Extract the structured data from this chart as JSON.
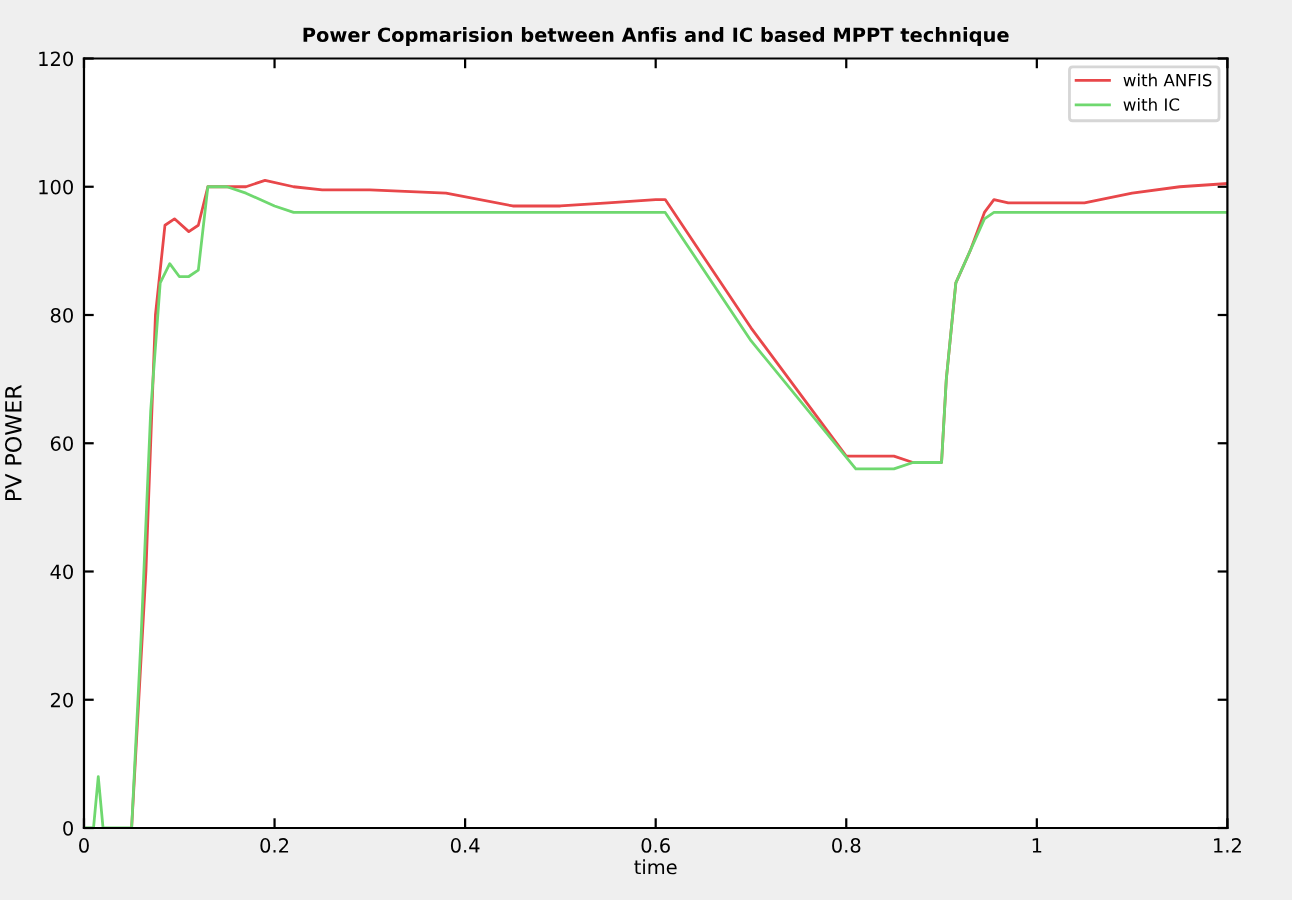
{
  "chart_data": {
    "type": "line",
    "title": "Power Copmarision between Anfis and IC based MPPT technique",
    "xlabel": "time",
    "ylabel": "PV POWER",
    "xlim": [
      0,
      1.2
    ],
    "ylim": [
      0,
      120
    ],
    "xticks": [
      0,
      0.2,
      0.4,
      0.6,
      0.8,
      1,
      1.2
    ],
    "yticks": [
      0,
      20,
      40,
      60,
      80,
      100,
      120
    ],
    "grid": false,
    "legend": "top right",
    "line_style": "solid",
    "marker": "none",
    "series": [
      {
        "name": "with ANFIS",
        "color": "#e8474a",
        "x": [
          0.05,
          0.065,
          0.075,
          0.085,
          0.095,
          0.11,
          0.12,
          0.13,
          0.15,
          0.17,
          0.19,
          0.22,
          0.25,
          0.3,
          0.38,
          0.45,
          0.5,
          0.55,
          0.6,
          0.61,
          0.7,
          0.8,
          0.85,
          0.87,
          0.9,
          0.905,
          0.915,
          0.93,
          0.945,
          0.955,
          0.97,
          1.0,
          1.05,
          1.1,
          1.15,
          1.2
        ],
        "values": [
          0,
          40,
          80,
          94,
          95,
          93,
          94,
          100,
          100,
          100,
          101,
          100,
          99.5,
          99.5,
          99,
          97,
          97,
          97.5,
          98,
          98,
          78,
          58,
          58,
          57,
          57,
          70,
          85,
          90,
          96,
          98,
          97.5,
          97.5,
          97.5,
          99,
          100,
          100.5
        ]
      },
      {
        "name": "with IC",
        "color": "#6fd86f",
        "x": [
          0,
          0.01,
          0.015,
          0.02,
          0.05,
          0.06,
          0.07,
          0.08,
          0.09,
          0.1,
          0.11,
          0.12,
          0.13,
          0.15,
          0.17,
          0.2,
          0.22,
          0.25,
          0.3,
          0.4,
          0.5,
          0.6,
          0.61,
          0.7,
          0.81,
          0.85,
          0.87,
          0.9,
          0.905,
          0.915,
          0.93,
          0.945,
          0.955,
          1.0,
          1.1,
          1.2
        ],
        "values": [
          0,
          0,
          8,
          0,
          0,
          30,
          65,
          85,
          88,
          86,
          86,
          87,
          100,
          100,
          99,
          97,
          96,
          96,
          96,
          96,
          96,
          96,
          96,
          76,
          56,
          56,
          57,
          57,
          70,
          85,
          90,
          95,
          96,
          96,
          96,
          96
        ]
      }
    ]
  }
}
